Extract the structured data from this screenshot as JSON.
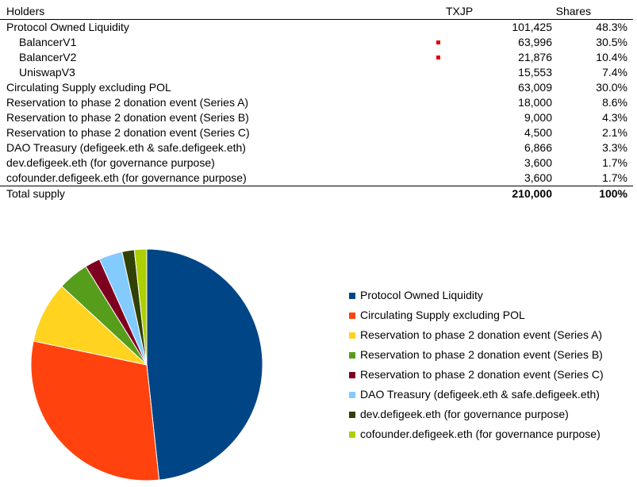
{
  "table": {
    "headers": {
      "holders": "Holders",
      "txjp": "TXJP",
      "shares": "Shares"
    },
    "rows": [
      {
        "label": "Protocol Owned Liquidity",
        "tokens": "101,425",
        "share": "48.3%",
        "indent": false,
        "marker": false
      },
      {
        "label": "BalancerV1",
        "tokens": "63,996",
        "share": "30.5%",
        "indent": true,
        "marker": true
      },
      {
        "label": "BalancerV2",
        "tokens": "21,876",
        "share": "10.4%",
        "indent": true,
        "marker": true
      },
      {
        "label": "UniswapV3",
        "tokens": "15,553",
        "share": "7.4%",
        "indent": true,
        "marker": false
      },
      {
        "label": "Circulating Supply excluding POL",
        "tokens": "63,009",
        "share": "30.0%",
        "indent": false,
        "marker": false
      },
      {
        "label": "Reservation to phase 2 donation event (Series A)",
        "tokens": "18,000",
        "share": "8.6%",
        "indent": false,
        "marker": false
      },
      {
        "label": "Reservation to phase 2 donation event (Series B)",
        "tokens": "9,000",
        "share": "4.3%",
        "indent": false,
        "marker": false
      },
      {
        "label": "Reservation to phase 2 donation event (Series C)",
        "tokens": "4,500",
        "share": "2.1%",
        "indent": false,
        "marker": false
      },
      {
        "label": "DAO Treasury (defigeek.eth & safe.defigeek.eth)",
        "tokens": "6,866",
        "share": "3.3%",
        "indent": false,
        "marker": false
      },
      {
        "label": "dev.defigeek.eth (for governance purpose)",
        "tokens": "3,600",
        "share": "1.7%",
        "indent": false,
        "marker": false
      },
      {
        "label": "cofounder.defigeek.eth (for governance purpose)",
        "tokens": "3,600",
        "share": "1.7%",
        "indent": false,
        "marker": false
      }
    ],
    "total": {
      "label": "Total supply",
      "tokens": "210,000",
      "share": "100%"
    }
  },
  "chart_data": {
    "type": "pie",
    "categories": [
      "Protocol Owned Liquidity",
      "Circulating Supply excluding POL",
      "Reservation to phase 2 donation event (Series A)",
      "Reservation to phase 2 donation event (Series B)",
      "Reservation to phase 2 donation event (Series C)",
      "DAO Treasury (defigeek.eth & safe.defigeek.eth)",
      "dev.defigeek.eth (for governance purpose)",
      "cofounder.defigeek.eth (for governance purpose)"
    ],
    "values": [
      101425,
      63009,
      18000,
      9000,
      4500,
      6866,
      3600,
      3600
    ],
    "colors": [
      "#004586",
      "#ff420e",
      "#ffd320",
      "#579d1c",
      "#7e0021",
      "#83caff",
      "#314004",
      "#aecf00"
    ],
    "start": "12 o'clock, clockwise",
    "legend_position": "right"
  }
}
